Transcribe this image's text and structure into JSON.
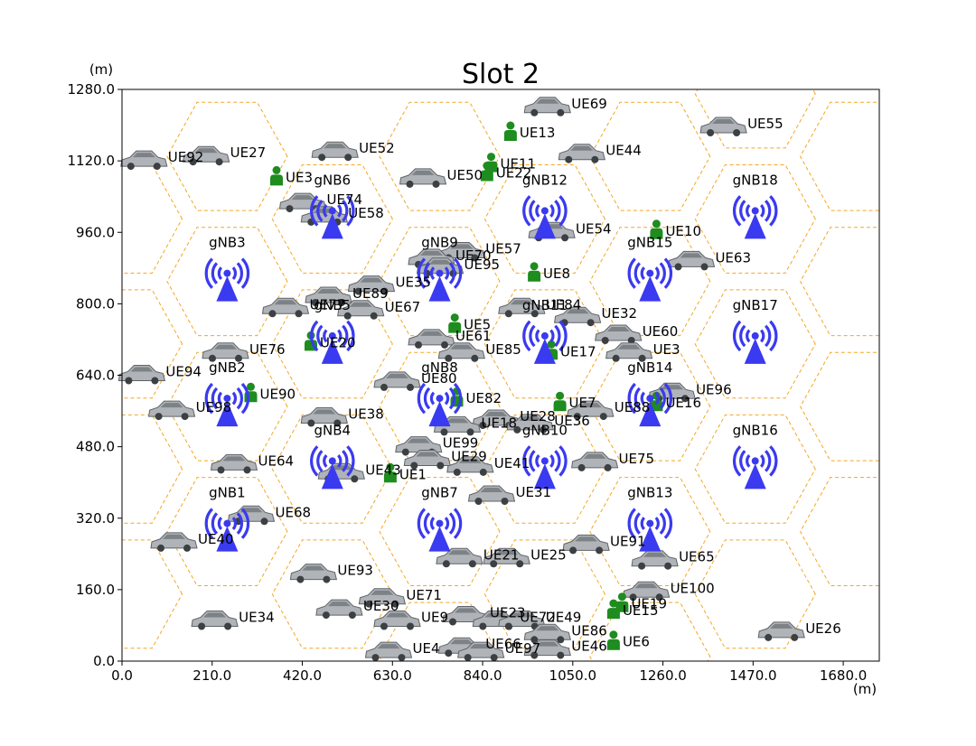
{
  "chart_data": {
    "type": "scatter",
    "title": "Slot 2",
    "xlabel": "(m)",
    "ylabel": "(m)",
    "xlim": [
      0,
      1764
    ],
    "ylim": [
      0,
      1280
    ],
    "x_ticks": [
      0,
      210,
      420,
      630,
      840,
      1050,
      1260,
      1470,
      1680
    ],
    "x_tick_labels": [
      "0.0",
      "210.0",
      "420.0",
      "630.0",
      "840.0",
      "1050.0",
      "1260.0",
      "1470.0",
      "1680.0"
    ],
    "y_ticks": [
      0,
      160,
      320,
      480,
      640,
      800,
      960,
      1120,
      1280
    ],
    "y_tick_labels": [
      "0.0",
      "160.0",
      "320.0",
      "480.0",
      "640.0",
      "800.0",
      "960.0",
      "1120.0",
      "1280.0"
    ],
    "grid": false,
    "hex_cells": {
      "radius": 140,
      "centers": [
        [
          245,
          850
        ],
        [
          245,
          570
        ],
        [
          245,
          290
        ],
        [
          490,
          990
        ],
        [
          490,
          710
        ],
        [
          490,
          430
        ],
        [
          740,
          850
        ],
        [
          740,
          570
        ],
        [
          740,
          290
        ],
        [
          985,
          990
        ],
        [
          985,
          710
        ],
        [
          985,
          430
        ],
        [
          1230,
          850
        ],
        [
          1230,
          570
        ],
        [
          1230,
          290
        ],
        [
          1475,
          990
        ],
        [
          1475,
          710
        ],
        [
          1475,
          430
        ],
        [
          490,
          150
        ],
        [
          985,
          150
        ],
        [
          740,
          1130
        ],
        [
          1230,
          1130
        ],
        [
          245,
          1130
        ],
        [
          740,
          10
        ],
        [
          1230,
          10
        ],
        [
          1475,
          150
        ],
        [
          1475,
          1270
        ],
        [
          1720,
          850
        ],
        [
          1720,
          570
        ],
        [
          1720,
          290
        ],
        [
          1720,
          1130
        ],
        [
          0,
          990
        ],
        [
          0,
          710
        ],
        [
          0,
          430
        ],
        [
          0,
          150
        ]
      ]
    },
    "series": [
      {
        "name": "gNB",
        "color": "#3a3af0",
        "points": [
          {
            "label": "gNB3",
            "x": 245,
            "y": 850
          },
          {
            "label": "gNB2",
            "x": 245,
            "y": 570
          },
          {
            "label": "gNB1",
            "x": 245,
            "y": 290
          },
          {
            "label": "gNB6",
            "x": 490,
            "y": 990
          },
          {
            "label": "gNB5",
            "x": 490,
            "y": 710
          },
          {
            "label": "gNB4",
            "x": 490,
            "y": 430
          },
          {
            "label": "gNB9",
            "x": 740,
            "y": 850
          },
          {
            "label": "gNB8",
            "x": 740,
            "y": 570
          },
          {
            "label": "gNB7",
            "x": 740,
            "y": 290
          },
          {
            "label": "gNB12",
            "x": 985,
            "y": 990
          },
          {
            "label": "gNB11",
            "x": 985,
            "y": 710
          },
          {
            "label": "gNB10",
            "x": 985,
            "y": 430
          },
          {
            "label": "gNB15",
            "x": 1230,
            "y": 850
          },
          {
            "label": "gNB14",
            "x": 1230,
            "y": 570
          },
          {
            "label": "gNB13",
            "x": 1230,
            "y": 290
          },
          {
            "label": "gNB18",
            "x": 1475,
            "y": 990
          },
          {
            "label": "gNB17",
            "x": 1475,
            "y": 710
          },
          {
            "label": "gNB16",
            "x": 1475,
            "y": 430
          }
        ]
      },
      {
        "name": "UE (vehicle)",
        "color": "#9aa0a6",
        "points": [
          {
            "label": "UE92",
            "x": 50,
            "y": 1120
          },
          {
            "label": "UE27",
            "x": 195,
            "y": 1130
          },
          {
            "label": "UE52",
            "x": 495,
            "y": 1140
          },
          {
            "label": "UE69",
            "x": 990,
            "y": 1240
          },
          {
            "label": "UE55",
            "x": 1400,
            "y": 1195
          },
          {
            "label": "UE44",
            "x": 1070,
            "y": 1135
          },
          {
            "label": "UE50",
            "x": 700,
            "y": 1080
          },
          {
            "label": "UE74",
            "x": 420,
            "y": 1025
          },
          {
            "label": "UE58",
            "x": 470,
            "y": 995
          },
          {
            "label": "UE54",
            "x": 1000,
            "y": 960
          },
          {
            "label": "UE63",
            "x": 1325,
            "y": 895
          },
          {
            "label": "UE57",
            "x": 790,
            "y": 915
          },
          {
            "label": "UE70",
            "x": 720,
            "y": 900
          },
          {
            "label": "UE95",
            "x": 740,
            "y": 880
          },
          {
            "label": "UE35",
            "x": 580,
            "y": 840
          },
          {
            "label": "UE89",
            "x": 480,
            "y": 815
          },
          {
            "label": "UE77",
            "x": 380,
            "y": 790
          },
          {
            "label": "UE67",
            "x": 555,
            "y": 785
          },
          {
            "label": "UE84",
            "x": 930,
            "y": 790
          },
          {
            "label": "UE32",
            "x": 1060,
            "y": 770
          },
          {
            "label": "UE60",
            "x": 1155,
            "y": 730
          },
          {
            "label": "UE3",
            "x": 1180,
            "y": 690
          },
          {
            "label": "UE61",
            "x": 720,
            "y": 720
          },
          {
            "label": "UE85",
            "x": 790,
            "y": 690
          },
          {
            "label": "UE76",
            "x": 240,
            "y": 690
          },
          {
            "label": "UE80",
            "x": 640,
            "y": 625
          },
          {
            "label": "UE94",
            "x": 45,
            "y": 640
          },
          {
            "label": "UE98",
            "x": 115,
            "y": 560
          },
          {
            "label": "UE38",
            "x": 470,
            "y": 545
          },
          {
            "label": "UE28",
            "x": 870,
            "y": 540
          },
          {
            "label": "UE36",
            "x": 950,
            "y": 530
          },
          {
            "label": "UE88",
            "x": 1090,
            "y": 560
          },
          {
            "label": "UE96",
            "x": 1280,
            "y": 600
          },
          {
            "label": "UE26",
            "x": 1535,
            "y": 65
          },
          {
            "label": "UE18",
            "x": 780,
            "y": 525
          },
          {
            "label": "UE99",
            "x": 690,
            "y": 480
          },
          {
            "label": "UE29",
            "x": 710,
            "y": 450
          },
          {
            "label": "UE41",
            "x": 810,
            "y": 435
          },
          {
            "label": "UE31",
            "x": 860,
            "y": 370
          },
          {
            "label": "UE75",
            "x": 1100,
            "y": 445
          },
          {
            "label": "UE64",
            "x": 260,
            "y": 440
          },
          {
            "label": "UE43",
            "x": 510,
            "y": 420
          },
          {
            "label": "UE68",
            "x": 300,
            "y": 325
          },
          {
            "label": "UE40",
            "x": 120,
            "y": 265
          },
          {
            "label": "UE93",
            "x": 445,
            "y": 195
          },
          {
            "label": "UE71",
            "x": 605,
            "y": 140
          },
          {
            "label": "UE30",
            "x": 505,
            "y": 115
          },
          {
            "label": "UE34",
            "x": 215,
            "y": 90
          },
          {
            "label": "UE21",
            "x": 785,
            "y": 230
          },
          {
            "label": "UE25",
            "x": 895,
            "y": 230
          },
          {
            "label": "UE91",
            "x": 1080,
            "y": 260
          },
          {
            "label": "UE65",
            "x": 1240,
            "y": 225
          },
          {
            "label": "UE100",
            "x": 1220,
            "y": 155
          },
          {
            "label": "UE23",
            "x": 800,
            "y": 100
          },
          {
            "label": "UE72",
            "x": 870,
            "y": 90
          },
          {
            "label": "UE49",
            "x": 930,
            "y": 90
          },
          {
            "label": "UE86",
            "x": 990,
            "y": 60
          },
          {
            "label": "UE46",
            "x": 990,
            "y": 25
          },
          {
            "label": "UE66",
            "x": 790,
            "y": 30
          },
          {
            "label": "UE97",
            "x": 835,
            "y": 20
          },
          {
            "label": "UE9",
            "x": 640,
            "y": 90
          },
          {
            "label": "UE4",
            "x": 620,
            "y": 20
          }
        ]
      },
      {
        "name": "UE (pedestrian)",
        "color": "#1e8c1e",
        "points": [
          {
            "label": "UE13",
            "x": 905,
            "y": 1185
          },
          {
            "label": "UE11",
            "x": 860,
            "y": 1115
          },
          {
            "label": "UE22",
            "x": 850,
            "y": 1095
          },
          {
            "label": "UE3",
            "x": 360,
            "y": 1085
          },
          {
            "label": "UE10",
            "x": 1245,
            "y": 965
          },
          {
            "label": "UE8",
            "x": 960,
            "y": 870
          },
          {
            "label": "UE5",
            "x": 775,
            "y": 755
          },
          {
            "label": "UE20",
            "x": 440,
            "y": 715
          },
          {
            "label": "UE17",
            "x": 1000,
            "y": 695
          },
          {
            "label": "UE7",
            "x": 1020,
            "y": 580
          },
          {
            "label": "UE16",
            "x": 1245,
            "y": 580
          },
          {
            "label": "UE90",
            "x": 300,
            "y": 600
          },
          {
            "label": "UE1",
            "x": 625,
            "y": 420
          },
          {
            "label": "UE82",
            "x": 780,
            "y": 590
          },
          {
            "label": "UE15",
            "x": 1145,
            "y": 115
          },
          {
            "label": "UE19",
            "x": 1165,
            "y": 130
          },
          {
            "label": "UE6",
            "x": 1145,
            "y": 45
          }
        ]
      }
    ]
  }
}
